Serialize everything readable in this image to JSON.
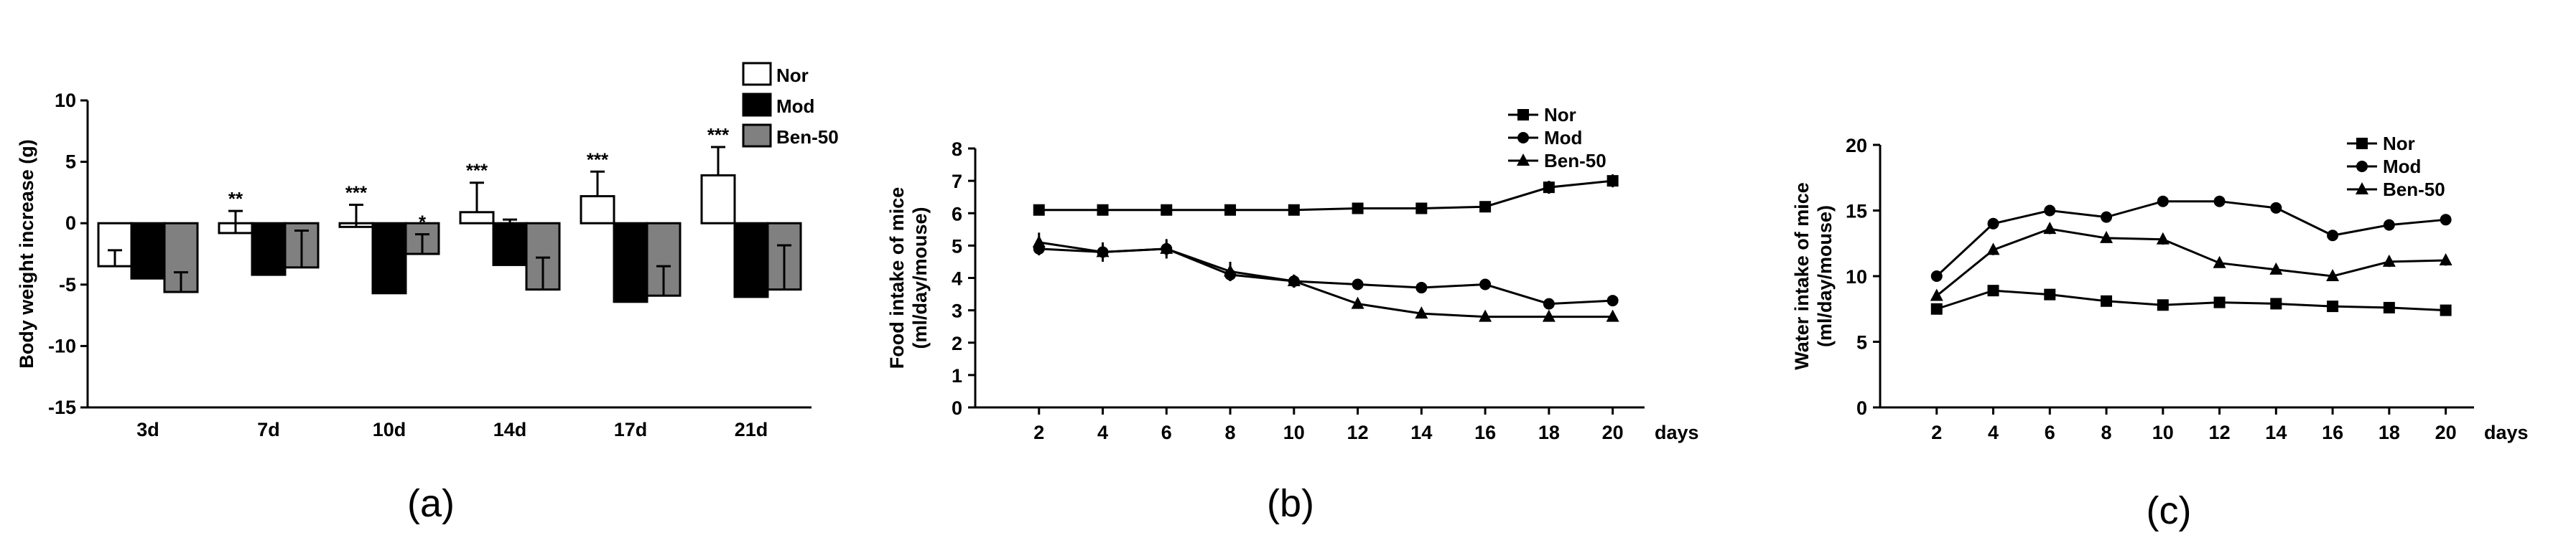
{
  "chart_data": [
    {
      "type": "bar",
      "caption": "(a)",
      "ylabel": "Body weight increase (g)",
      "xlabel": "",
      "ylim": [
        -15,
        10
      ],
      "yticks": [
        10,
        5,
        0,
        -5,
        -10,
        -15
      ],
      "ytick_labels": [
        "10",
        "5",
        "0",
        "-5",
        "-10",
        "-15"
      ],
      "categories": [
        "3d",
        "7d",
        "10d",
        "14d",
        "17d",
        "21d"
      ],
      "legend_position": "top-right",
      "colors": {
        "Nor": "#ffffff",
        "Mod": "#000000",
        "Ben-50": "#808080"
      },
      "series": [
        {
          "name": "Nor",
          "values": [
            -3.5,
            -0.8,
            -0.3,
            0.9,
            2.2,
            3.9
          ],
          "errors": [
            1.3,
            1.8,
            1.8,
            2.4,
            2.0,
            2.3
          ]
        },
        {
          "name": "Mod",
          "values": [
            -4.5,
            -4.2,
            -5.7,
            -3.4,
            -6.4,
            -6.0
          ],
          "errors": [
            2.3,
            2.6,
            2.3,
            3.7,
            3.1,
            2.5
          ]
        },
        {
          "name": "Ben-50",
          "values": [
            -5.6,
            -3.6,
            -2.5,
            -5.4,
            -5.9,
            -5.4
          ],
          "errors": [
            1.6,
            3.0,
            1.6,
            2.6,
            2.4,
            3.6
          ]
        }
      ],
      "annotations": [
        {
          "text": "**",
          "category": "7d",
          "series": "Nor"
        },
        {
          "text": "***",
          "category": "10d",
          "series": "Nor"
        },
        {
          "text": "*",
          "category": "10d",
          "series": "Ben-50"
        },
        {
          "text": "***",
          "category": "14d",
          "series": "Nor"
        },
        {
          "text": "***",
          "category": "17d",
          "series": "Nor"
        },
        {
          "text": "***",
          "category": "21d",
          "series": "Nor"
        }
      ]
    },
    {
      "type": "line",
      "caption": "(b)",
      "ylabel": "Food intake of mice (ml/day/mouse)",
      "xlabel": "days",
      "x": [
        2,
        4,
        6,
        8,
        10,
        12,
        14,
        16,
        18,
        20
      ],
      "xlim": [
        0,
        21
      ],
      "ylim": [
        0,
        8
      ],
      "yticks": [
        0,
        1,
        2,
        3,
        4,
        5,
        6,
        7,
        8
      ],
      "legend_position": "top-right",
      "series": [
        {
          "name": "Nor",
          "marker": "square",
          "values": [
            6.1,
            6.1,
            6.1,
            6.1,
            6.1,
            6.15,
            6.15,
            6.2,
            6.8,
            7.0
          ],
          "errors": [
            0.15,
            0.15,
            0.15,
            0.15,
            0.15,
            0.15,
            0.15,
            0.15,
            0.2,
            0.2
          ]
        },
        {
          "name": "Mod",
          "marker": "circle",
          "values": [
            4.9,
            4.8,
            4.9,
            4.1,
            3.9,
            3.8,
            3.7,
            3.8,
            3.2,
            3.3
          ],
          "errors": [
            0.2,
            0.2,
            0.2,
            0.2,
            0.2,
            0.1,
            0.1,
            0.1,
            0.15,
            0.1
          ]
        },
        {
          "name": "Ben-50",
          "marker": "triangle",
          "values": [
            5.1,
            4.8,
            4.9,
            4.2,
            3.9,
            3.2,
            2.9,
            2.8,
            2.8,
            2.8
          ],
          "errors": [
            0.3,
            0.3,
            0.3,
            0.3,
            0.2,
            0.1,
            0.1,
            0.1,
            0.1,
            0.1
          ]
        }
      ]
    },
    {
      "type": "line",
      "caption": "(c)",
      "ylabel": "Water intake of mice (ml/day/mouse)",
      "xlabel": "days",
      "x": [
        2,
        4,
        6,
        8,
        10,
        12,
        14,
        16,
        18,
        20
      ],
      "xlim": [
        0,
        21
      ],
      "ylim": [
        0,
        20
      ],
      "yticks": [
        0,
        5,
        10,
        15,
        20
      ],
      "legend_position": "top-right",
      "series": [
        {
          "name": "Nor",
          "marker": "square",
          "values": [
            7.5,
            8.9,
            8.6,
            8.1,
            7.8,
            8.0,
            7.9,
            7.7,
            7.6,
            7.4
          ],
          "errors": [
            0.2,
            0.2,
            0.2,
            0.2,
            0.2,
            0.2,
            0.2,
            0.2,
            0.2,
            0.2
          ]
        },
        {
          "name": "Mod",
          "marker": "circle",
          "values": [
            10.0,
            14.0,
            15.0,
            14.5,
            15.7,
            15.7,
            15.2,
            13.1,
            13.9,
            14.3
          ],
          "errors": [
            0.3,
            0.4,
            0.4,
            0.3,
            0.4,
            0.4,
            0.4,
            0.3,
            0.4,
            0.4
          ]
        },
        {
          "name": "Ben-50",
          "marker": "triangle",
          "values": [
            8.5,
            12.0,
            13.6,
            12.9,
            12.8,
            11.0,
            10.5,
            10.0,
            11.1,
            11.2
          ],
          "errors": [
            0.3,
            0.4,
            0.4,
            0.3,
            0.4,
            0.3,
            0.3,
            0.3,
            0.4,
            0.4
          ]
        }
      ]
    }
  ]
}
